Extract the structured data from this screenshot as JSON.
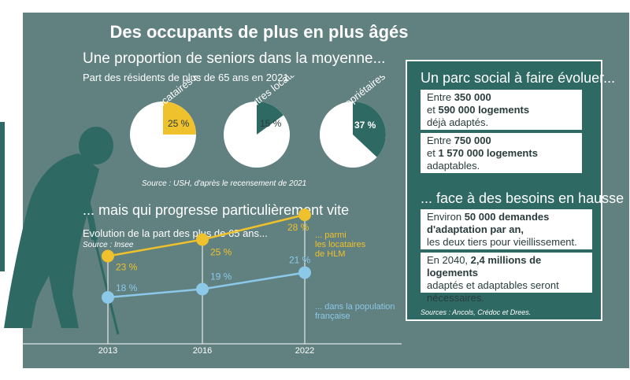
{
  "title": "Des occupants de plus en plus âgés",
  "section1": {
    "heading": "Une proportion de seniors dans la moyenne...",
    "subheading": "Part des résidents de plus de 65 ans en 2021",
    "source": "Source : USH, d'après le recensement de 2021"
  },
  "section2": {
    "heading": "... mais qui progresse particulièrement vite",
    "subheading": "Evolution de la part des plus de 65 ans...",
    "source": "Source : Insee",
    "annot_hlm": [
      "... parmi",
      "les locataires",
      "de HLM"
    ],
    "annot_fr": [
      "... dans la population",
      "française"
    ]
  },
  "sidebar": {
    "title": "Un parc social à faire évoluer...",
    "box1": {
      "l1a": "Entre ",
      "l1b": "350 000",
      "l2a": "et ",
      "l2b": "590 000 logements",
      "l3": "déjà adaptés."
    },
    "box2": {
      "l1a": "Entre ",
      "l1b": "750 000",
      "l2a": "et ",
      "l2b": "1 570 000 logements",
      "l3": "adaptables."
    },
    "title2": "... face à des besoins en hausse",
    "box3": {
      "l1a": "Environ ",
      "l1b": "50 000 demandes",
      "l2": "d'adaptation par an,",
      "l3": "les deux tiers pour vieillissement."
    },
    "box4": {
      "l1a": "En 2040, ",
      "l1b": "2,4 millions de logements",
      "l2": "adaptés et adaptables seront",
      "l3": "nécessaires."
    },
    "source": "Sources : Ancols, Crédoc et Drees."
  },
  "colors": {
    "teal": "#2e6a63",
    "background": "#618080",
    "yellow": "#efc12c",
    "blue": "#8cc8e8"
  },
  "chart_data": [
    {
      "type": "pie",
      "title": "Part des résidents de plus de 65 ans en 2021",
      "pies": [
        {
          "label": "Locataires HLM",
          "value": 25,
          "value_label": "25 %",
          "color": "#efc12c"
        },
        {
          "label": "Autres locataires",
          "value": 15,
          "value_label": "15 %",
          "color": "#2e6a63"
        },
        {
          "label": "Propriétaires occupants",
          "value": 37,
          "value_label": "37 %",
          "color": "#2e6a63"
        }
      ]
    },
    {
      "type": "line",
      "title": "Evolution de la part des plus de 65 ans...",
      "x": [
        2013,
        2016,
        2022
      ],
      "x_labels": [
        "2013",
        "2016",
        "2022"
      ],
      "ylim": [
        10,
        30
      ],
      "series": [
        {
          "name": "... parmi les locataires de HLM",
          "values": [
            23,
            25,
            28
          ],
          "labels": [
            "23 %",
            "25 %",
            "28 %"
          ],
          "color": "#efc12c"
        },
        {
          "name": "... dans la population française",
          "values": [
            18,
            19,
            21
          ],
          "labels": [
            "18 %",
            "19 %",
            "21 %"
          ],
          "color": "#8cc8e8"
        }
      ]
    }
  ]
}
